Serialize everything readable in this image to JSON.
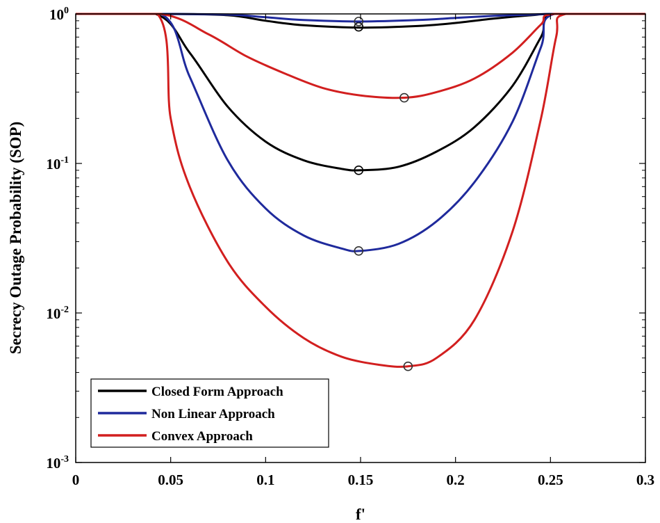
{
  "chart_data": {
    "type": "line",
    "title": "",
    "xlabel": "f'",
    "ylabel": "Secrecy Outage Probability (SOP)",
    "xlim": [
      0,
      0.3
    ],
    "ylim": [
      0.001,
      1
    ],
    "yscale": "log",
    "x_ticks": [
      "0",
      "0.05",
      "0.1",
      "0.15",
      "0.2",
      "0.25",
      "0.3"
    ],
    "y_ticks": [
      {
        "base": "10",
        "exp": "0"
      },
      {
        "base": "10",
        "exp": "-1"
      },
      {
        "base": "10",
        "exp": "-2"
      },
      {
        "base": "10",
        "exp": "-3"
      }
    ],
    "legend_position": "bottom-left",
    "series": [
      {
        "name": "Closed Form Approach",
        "color": "#000000",
        "group": "a",
        "points": [
          [
            0,
            1
          ],
          [
            0.042,
            1
          ],
          [
            0.06,
            0.55
          ],
          [
            0.08,
            0.24
          ],
          [
            0.1,
            0.14
          ],
          [
            0.12,
            0.105
          ],
          [
            0.14,
            0.092
          ],
          [
            0.15,
            0.09
          ],
          [
            0.17,
            0.095
          ],
          [
            0.19,
            0.12
          ],
          [
            0.21,
            0.175
          ],
          [
            0.23,
            0.33
          ],
          [
            0.245,
            0.7
          ],
          [
            0.252,
            1
          ],
          [
            0.3,
            1
          ]
        ],
        "marker": [
          0.149,
          0.09
        ]
      },
      {
        "name": "Non Linear Approach",
        "color": "#1f2a9c",
        "group": "a",
        "points": [
          [
            0,
            1
          ],
          [
            0.045,
            1
          ],
          [
            0.06,
            0.38
          ],
          [
            0.08,
            0.105
          ],
          [
            0.1,
            0.05
          ],
          [
            0.12,
            0.033
          ],
          [
            0.14,
            0.027
          ],
          [
            0.15,
            0.026
          ],
          [
            0.17,
            0.029
          ],
          [
            0.19,
            0.041
          ],
          [
            0.21,
            0.075
          ],
          [
            0.23,
            0.19
          ],
          [
            0.245,
            0.6
          ],
          [
            0.252,
            1
          ],
          [
            0.3,
            1
          ]
        ],
        "marker": [
          0.149,
          0.026
        ]
      },
      {
        "name": "Convex Approach",
        "color": "#d21f1f",
        "group": "a",
        "points": [
          [
            0,
            1
          ],
          [
            0.043,
            1
          ],
          [
            0.05,
            0.2
          ],
          [
            0.06,
            0.07
          ],
          [
            0.08,
            0.022
          ],
          [
            0.1,
            0.011
          ],
          [
            0.12,
            0.0068
          ],
          [
            0.14,
            0.0051
          ],
          [
            0.16,
            0.0045
          ],
          [
            0.175,
            0.0044
          ],
          [
            0.19,
            0.005
          ],
          [
            0.21,
            0.009
          ],
          [
            0.23,
            0.035
          ],
          [
            0.245,
            0.2
          ],
          [
            0.253,
            0.7
          ],
          [
            0.258,
            1
          ],
          [
            0.3,
            1
          ]
        ],
        "marker": [
          0.175,
          0.0044
        ]
      },
      {
        "name": "",
        "color": "#000000",
        "group": "b",
        "points": [
          [
            0,
            1
          ],
          [
            0.045,
            1
          ],
          [
            0.08,
            0.98
          ],
          [
            0.1,
            0.9
          ],
          [
            0.12,
            0.84
          ],
          [
            0.15,
            0.81
          ],
          [
            0.18,
            0.83
          ],
          [
            0.2,
            0.87
          ],
          [
            0.22,
            0.93
          ],
          [
            0.24,
            0.98
          ],
          [
            0.252,
            1
          ],
          [
            0.3,
            1
          ]
        ],
        "marker": [
          0.149,
          0.82
        ]
      },
      {
        "name": "",
        "color": "#1f2a9c",
        "group": "b",
        "points": [
          [
            0,
            1
          ],
          [
            0.045,
            1
          ],
          [
            0.08,
            0.99
          ],
          [
            0.1,
            0.95
          ],
          [
            0.12,
            0.91
          ],
          [
            0.15,
            0.89
          ],
          [
            0.18,
            0.91
          ],
          [
            0.2,
            0.94
          ],
          [
            0.22,
            0.97
          ],
          [
            0.24,
            0.99
          ],
          [
            0.252,
            1
          ],
          [
            0.3,
            1
          ]
        ],
        "marker": [
          0.149,
          0.89
        ]
      },
      {
        "name": "",
        "color": "#d21f1f",
        "group": "b",
        "points": [
          [
            0,
            1
          ],
          [
            0.045,
            1
          ],
          [
            0.07,
            0.73
          ],
          [
            0.09,
            0.52
          ],
          [
            0.11,
            0.4
          ],
          [
            0.13,
            0.32
          ],
          [
            0.15,
            0.285
          ],
          [
            0.173,
            0.275
          ],
          [
            0.19,
            0.3
          ],
          [
            0.21,
            0.37
          ],
          [
            0.23,
            0.55
          ],
          [
            0.245,
            0.85
          ],
          [
            0.252,
            1
          ],
          [
            0.3,
            1
          ]
        ],
        "marker": [
          0.173,
          0.275
        ]
      }
    ]
  }
}
